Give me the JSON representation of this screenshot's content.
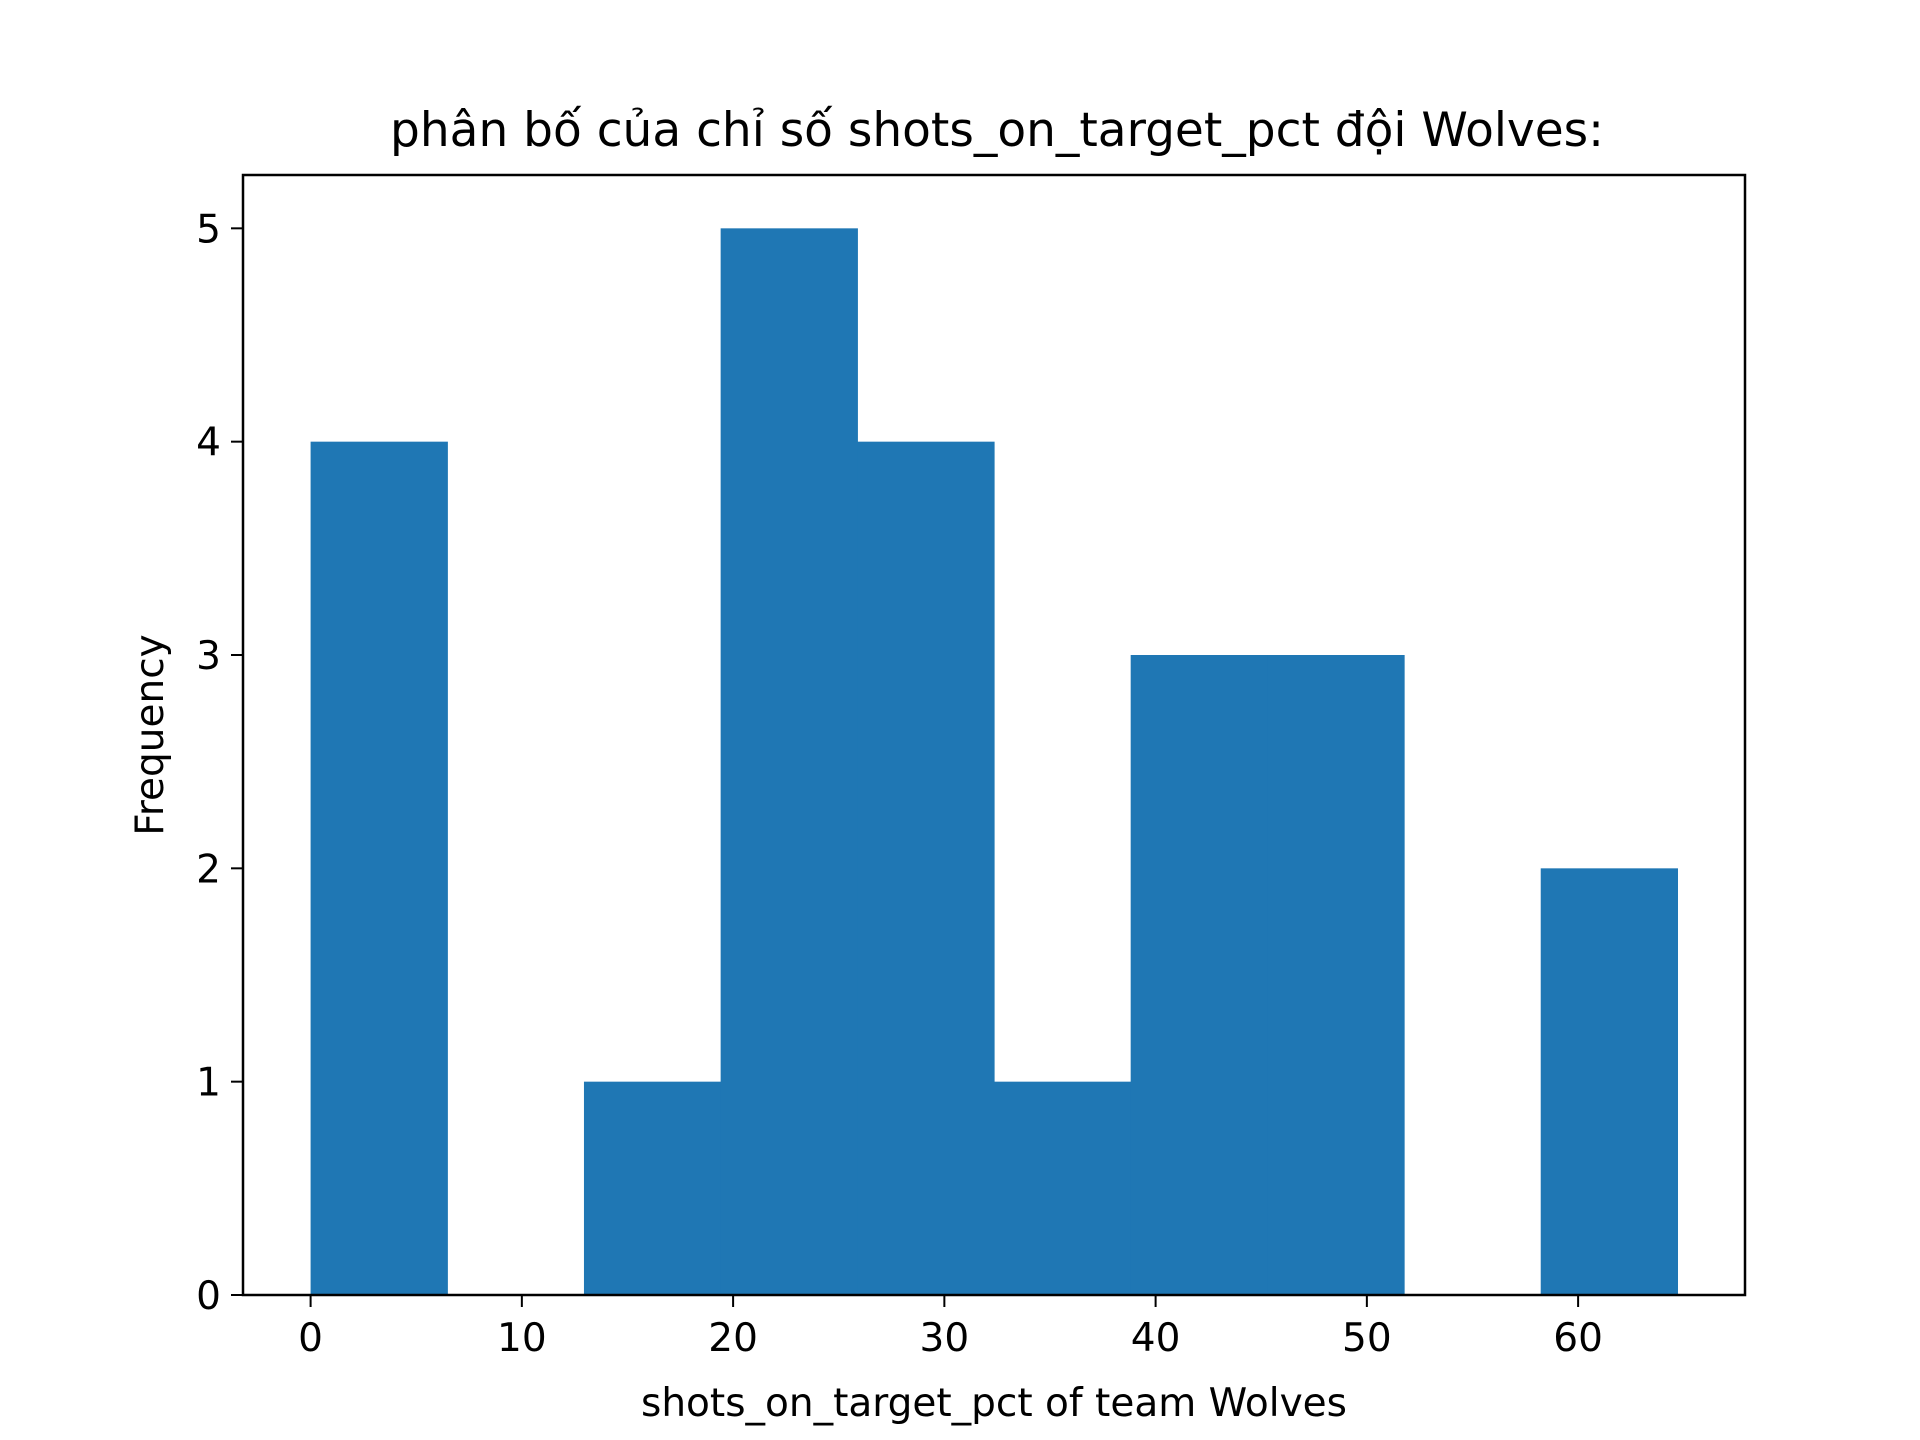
{
  "chart_data": {
    "type": "bar",
    "title": "phân bố của chỉ số shots_on_target_pct đội Wolves:",
    "xlabel": "shots_on_target_pct of team Wolves",
    "ylabel": "Frequency",
    "bar_color": "#1f77b4",
    "bin_edges": [
      0,
      6.47,
      12.94,
      19.41,
      25.88,
      32.35,
      38.82,
      45.29,
      51.76,
      58.23,
      64.7
    ],
    "values": [
      4,
      0,
      1,
      5,
      4,
      1,
      3,
      3,
      0,
      2
    ],
    "xlim": [
      -3.2,
      67.9
    ],
    "ylim": [
      0,
      5.25
    ],
    "xticks": [
      0,
      10,
      20,
      30,
      40,
      50,
      60
    ],
    "xtick_labels": [
      "0",
      "10",
      "20",
      "30",
      "40",
      "50",
      "60"
    ],
    "yticks": [
      0,
      1,
      2,
      3,
      4,
      5
    ],
    "ytick_labels": [
      "0",
      "1",
      "2",
      "3",
      "4",
      "5"
    ],
    "grid": false,
    "legend": "none"
  }
}
